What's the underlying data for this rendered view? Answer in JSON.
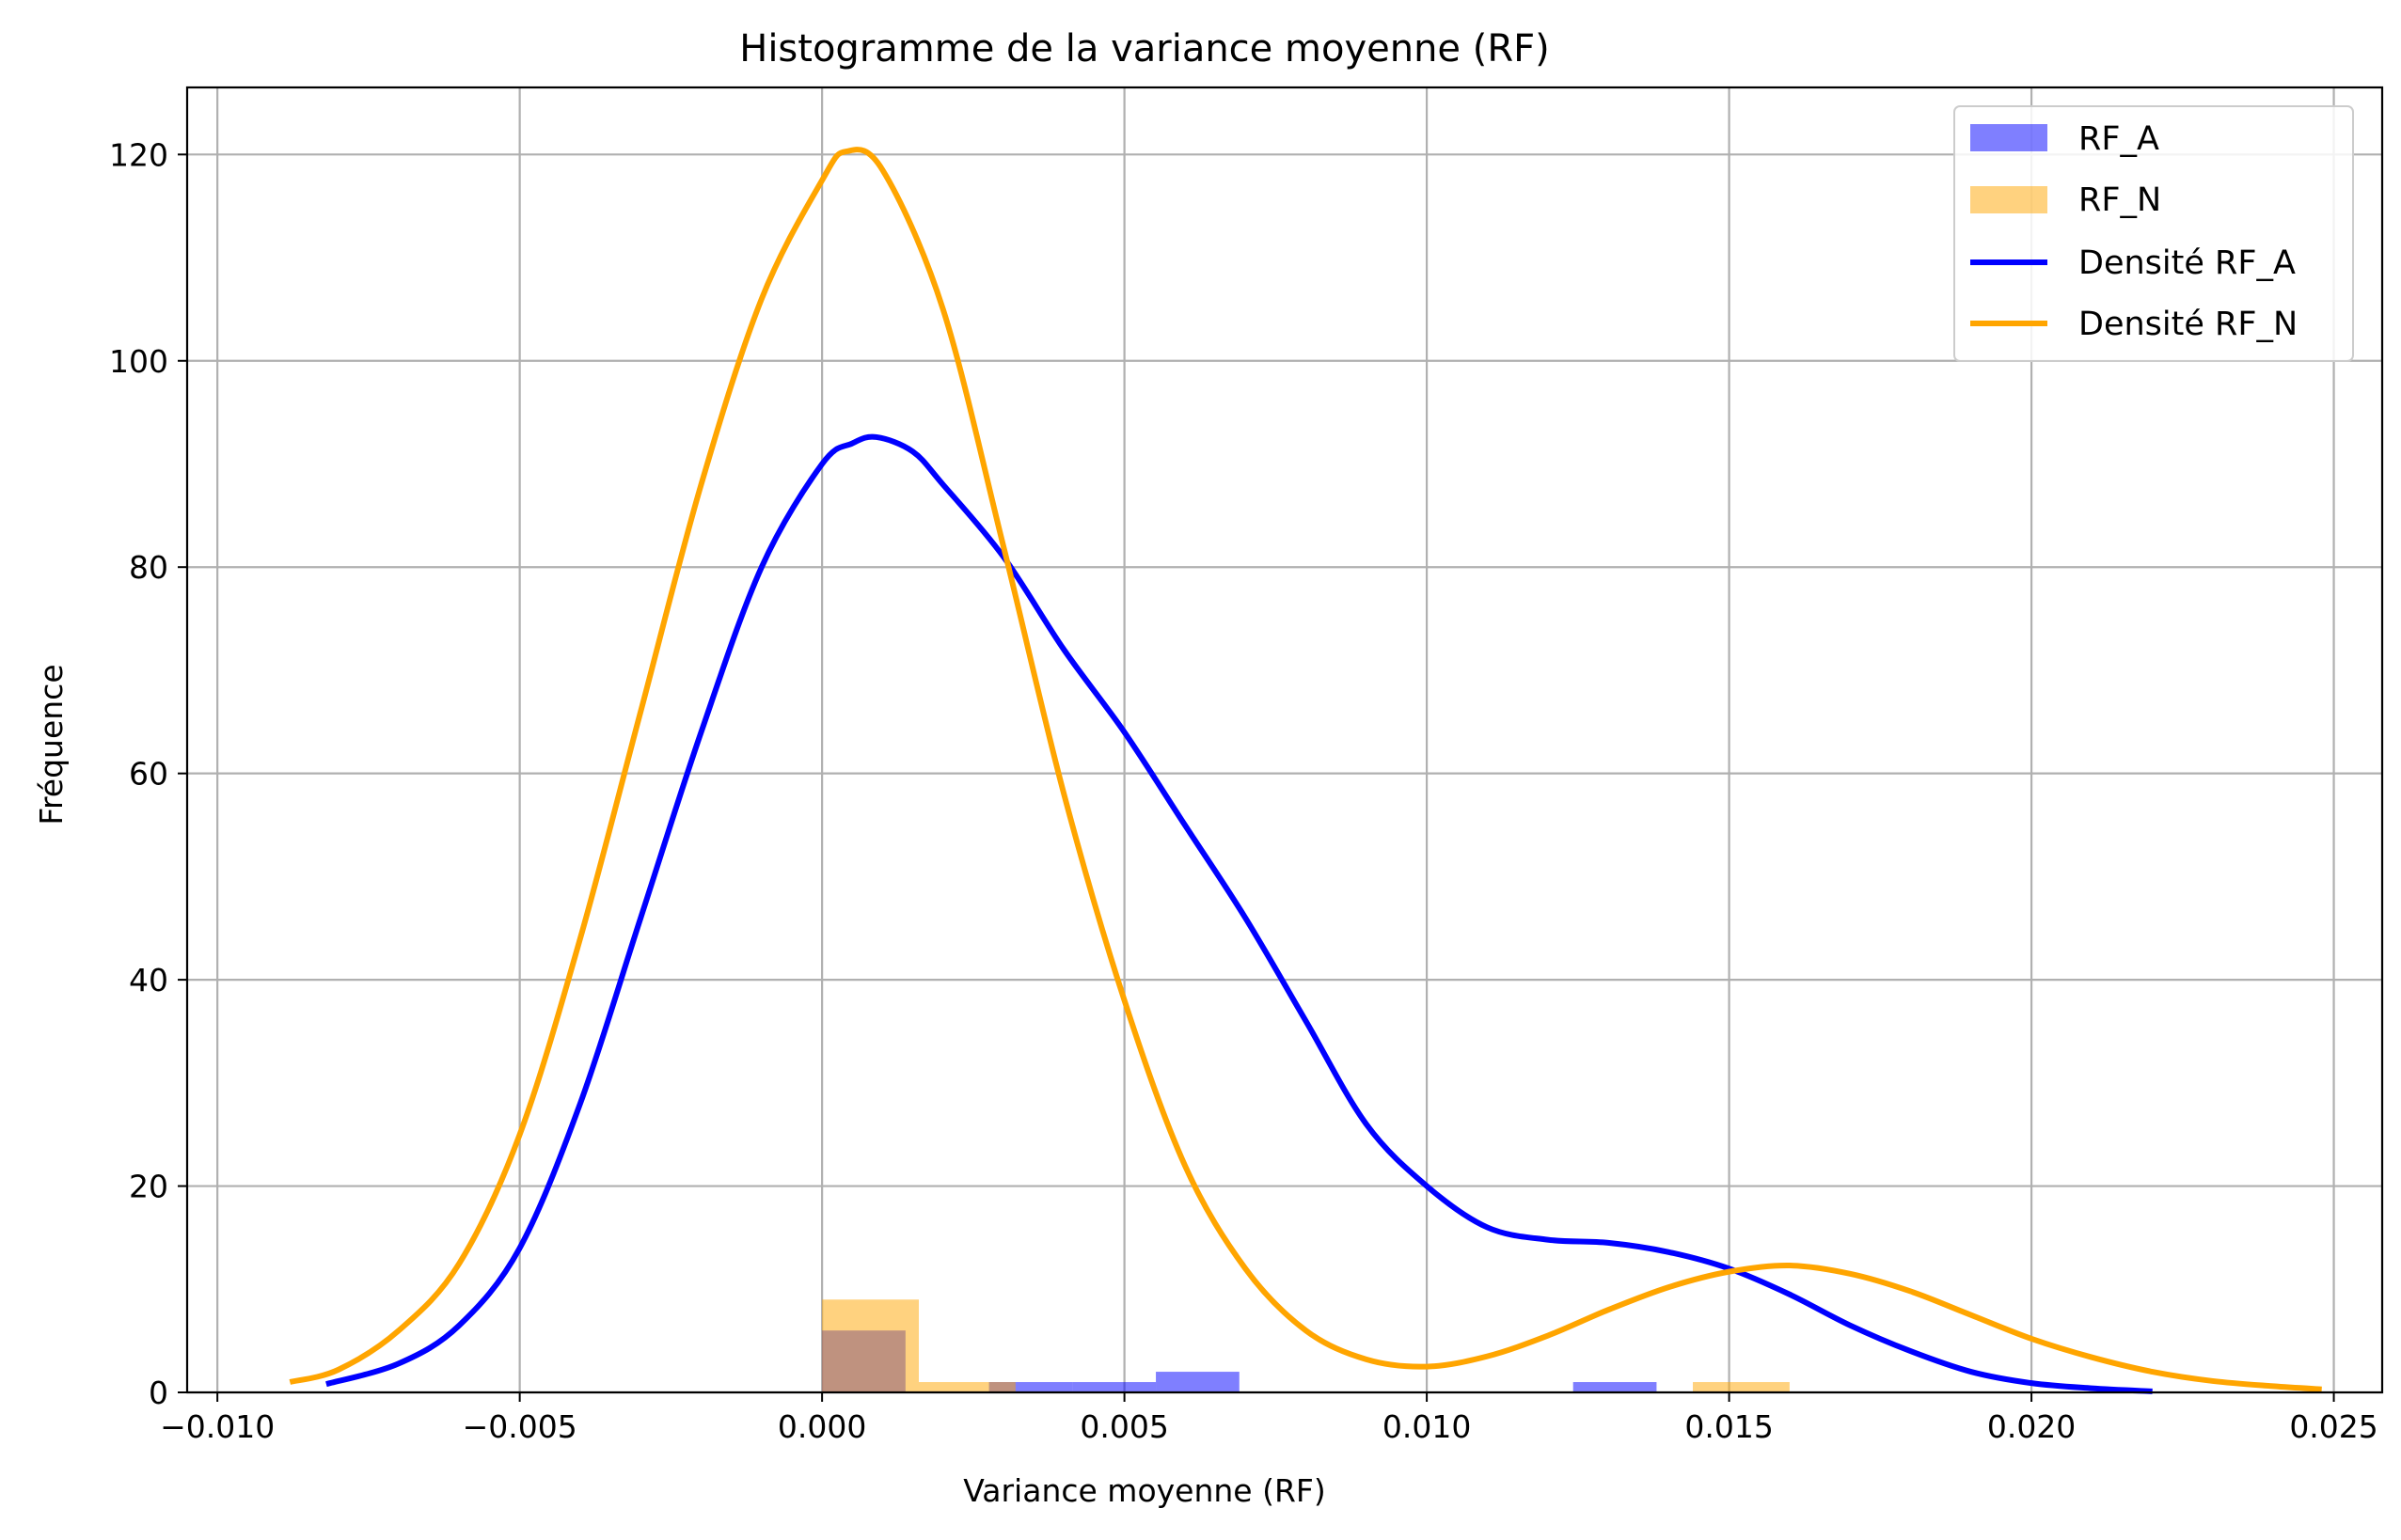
{
  "chart_data": {
    "type": "bar",
    "title": "Histogramme de la variance moyenne (RF)",
    "xlabel": "Variance moyenne (RF)",
    "ylabel": "Fréquence",
    "xlim": [
      -0.0105,
      0.0258
    ],
    "ylim": [
      0,
      126.5
    ],
    "xticks": [
      -0.01,
      -0.005,
      0.0,
      0.005,
      0.01,
      0.015,
      0.02,
      0.025
    ],
    "xtick_labels": [
      "−0.010",
      "−0.005",
      "0.000",
      "0.005",
      "0.010",
      "0.015",
      "0.020",
      "0.025"
    ],
    "yticks": [
      0,
      20,
      40,
      60,
      80,
      100,
      120
    ],
    "ytick_labels": [
      "0",
      "20",
      "40",
      "60",
      "80",
      "100",
      "120"
    ],
    "grid": true,
    "legend_position": "top-right",
    "legend": [
      "RF_A",
      "RF_N",
      "Densité RF_A",
      "Densité RF_N"
    ],
    "histograms": [
      {
        "name": "RF_A",
        "color": "#0000ff",
        "opacity": 0.5,
        "bins": [
          {
            "x0": 0.0,
            "x1": 0.00138,
            "count": 6
          },
          {
            "x0": 0.00138,
            "x1": 0.00276,
            "count": 0
          },
          {
            "x0": 0.00276,
            "x1": 0.00414,
            "count": 1
          },
          {
            "x0": 0.00414,
            "x1": 0.00552,
            "count": 1
          },
          {
            "x0": 0.00552,
            "x1": 0.0069,
            "count": 2
          },
          {
            "x0": 0.0069,
            "x1": 0.00828,
            "count": 0
          },
          {
            "x0": 0.00828,
            "x1": 0.00966,
            "count": 0
          },
          {
            "x0": 0.00966,
            "x1": 0.01104,
            "count": 0
          },
          {
            "x0": 0.01104,
            "x1": 0.01242,
            "count": 0
          },
          {
            "x0": 0.01242,
            "x1": 0.0138,
            "count": 1
          }
        ]
      },
      {
        "name": "RF_N",
        "color": "#ffa500",
        "opacity": 0.5,
        "bins": [
          {
            "x0": 0.0,
            "x1": 0.0016,
            "count": 9
          },
          {
            "x0": 0.0016,
            "x1": 0.0032,
            "count": 1
          },
          {
            "x0": 0.0032,
            "x1": 0.0048,
            "count": 0
          },
          {
            "x0": 0.0048,
            "x1": 0.0064,
            "count": 0
          },
          {
            "x0": 0.0064,
            "x1": 0.008,
            "count": 0
          },
          {
            "x0": 0.008,
            "x1": 0.0096,
            "count": 0
          },
          {
            "x0": 0.0096,
            "x1": 0.0112,
            "count": 0
          },
          {
            "x0": 0.0112,
            "x1": 0.0128,
            "count": 0
          },
          {
            "x0": 0.0128,
            "x1": 0.0144,
            "count": 0
          },
          {
            "x0": 0.0144,
            "x1": 0.016,
            "count": 1
          }
        ]
      }
    ],
    "densities": [
      {
        "name": "Densité RF_A",
        "color": "#0000ff",
        "points": [
          [
            -0.0082,
            0.8
          ],
          [
            -0.007,
            2.8
          ],
          [
            -0.006,
            6.5
          ],
          [
            -0.005,
            14
          ],
          [
            -0.004,
            28
          ],
          [
            -0.003,
            46
          ],
          [
            -0.002,
            64
          ],
          [
            -0.001,
            80
          ],
          [
            0.0,
            90
          ],
          [
            0.0005,
            92
          ],
          [
            0.0009,
            92.6
          ],
          [
            0.0015,
            91.2
          ],
          [
            0.002,
            88
          ],
          [
            0.003,
            81
          ],
          [
            0.004,
            72
          ],
          [
            0.005,
            64
          ],
          [
            0.006,
            55
          ],
          [
            0.007,
            46
          ],
          [
            0.008,
            36
          ],
          [
            0.009,
            26
          ],
          [
            0.01,
            20
          ],
          [
            0.011,
            16
          ],
          [
            0.012,
            14.8
          ],
          [
            0.013,
            14.5
          ],
          [
            0.014,
            13.6
          ],
          [
            0.015,
            12
          ],
          [
            0.016,
            9.5
          ],
          [
            0.017,
            6.5
          ],
          [
            0.018,
            4
          ],
          [
            0.019,
            2
          ],
          [
            0.02,
            0.9
          ],
          [
            0.021,
            0.4
          ],
          [
            0.022,
            0.1
          ]
        ]
      },
      {
        "name": "Densité RF_N",
        "color": "#ffa500",
        "points": [
          [
            -0.0088,
            1
          ],
          [
            -0.008,
            2.2
          ],
          [
            -0.007,
            6
          ],
          [
            -0.006,
            12.5
          ],
          [
            -0.005,
            25
          ],
          [
            -0.004,
            44
          ],
          [
            -0.003,
            66
          ],
          [
            -0.002,
            88
          ],
          [
            -0.001,
            106
          ],
          [
            0.0,
            117.5
          ],
          [
            0.0004,
            120.3
          ],
          [
            0.001,
            118.5
          ],
          [
            0.002,
            105
          ],
          [
            0.003,
            82
          ],
          [
            0.004,
            58
          ],
          [
            0.005,
            38
          ],
          [
            0.006,
            22
          ],
          [
            0.007,
            12
          ],
          [
            0.008,
            6
          ],
          [
            0.009,
            3.2
          ],
          [
            0.01,
            2.5
          ],
          [
            0.011,
            3.5
          ],
          [
            0.012,
            5.5
          ],
          [
            0.013,
            8
          ],
          [
            0.014,
            10.2
          ],
          [
            0.015,
            11.7
          ],
          [
            0.016,
            12.3
          ],
          [
            0.017,
            11.5
          ],
          [
            0.018,
            9.8
          ],
          [
            0.019,
            7.5
          ],
          [
            0.02,
            5.2
          ],
          [
            0.021,
            3.4
          ],
          [
            0.022,
            2
          ],
          [
            0.023,
            1.1
          ],
          [
            0.024,
            0.6
          ],
          [
            0.0248,
            0.3
          ]
        ]
      }
    ]
  }
}
